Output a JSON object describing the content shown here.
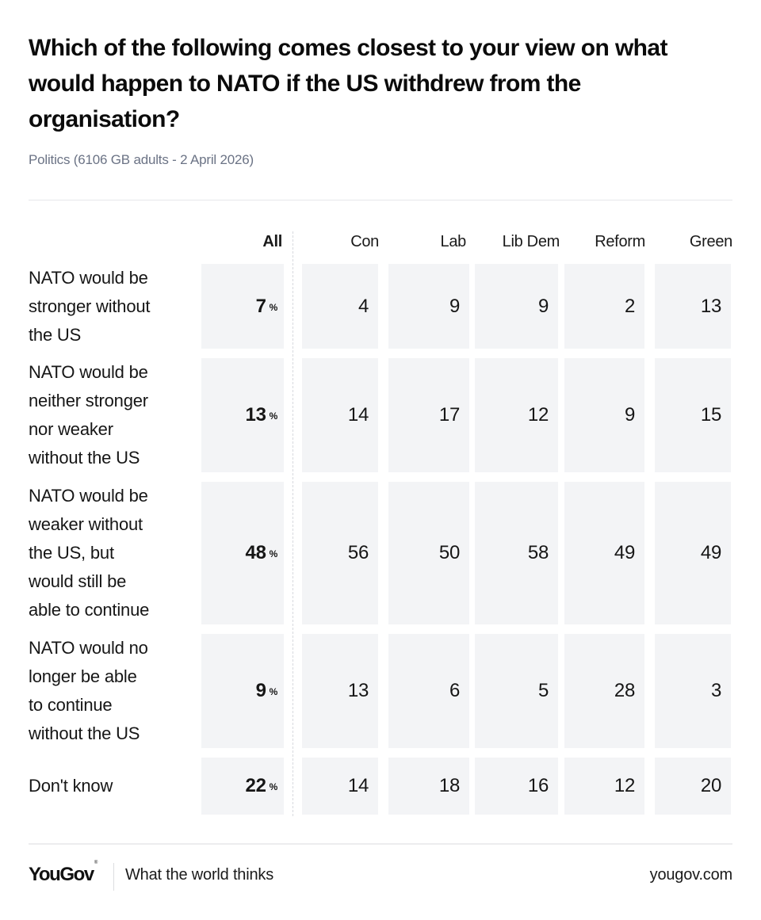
{
  "title": "Which of the following comes closest to your view on what would happen to NATO if the US withdrew from the organisation?",
  "subtitle": "Politics (6106 GB adults - 2 April 2026)",
  "footer": {
    "logo": "YouGov",
    "logo_mark": "®",
    "tagline": "What the world thinks",
    "site": "yougov.com"
  },
  "chart_data": {
    "type": "table",
    "title": "Which of the following comes closest to your view on what would happen to NATO if the US withdrew from the organisation?",
    "subtitle": "Politics (6106 GB adults - 2 April 2026)",
    "unit": "%",
    "columns": [
      "All",
      "Con",
      "Lab",
      "Lib Dem",
      "Reform",
      "Green"
    ],
    "rows": [
      {
        "label": "NATO would be stronger without the US",
        "lines": [
          "NATO would be",
          "stronger without",
          "the US"
        ],
        "values": [
          7,
          4,
          9,
          9,
          2,
          13
        ]
      },
      {
        "label": "NATO would be neither stronger nor weaker without the US",
        "lines": [
          "NATO would be",
          "neither stronger",
          "nor weaker",
          "without the US"
        ],
        "values": [
          13,
          14,
          17,
          12,
          9,
          15
        ]
      },
      {
        "label": "NATO would be weaker without the US, but would still be able to continue",
        "lines": [
          "NATO would be",
          "weaker without",
          "the US, but",
          "would still be",
          "able to continue"
        ],
        "values": [
          48,
          56,
          50,
          58,
          49,
          49
        ]
      },
      {
        "label": "NATO would no longer be able to continue without the US",
        "lines": [
          "NATO would no",
          "longer be able",
          "to continue",
          "without the US"
        ],
        "values": [
          9,
          13,
          6,
          5,
          28,
          3
        ]
      },
      {
        "label": "Don't know",
        "lines": [
          "Don't know"
        ],
        "values": [
          22,
          14,
          18,
          16,
          12,
          20
        ]
      }
    ]
  }
}
